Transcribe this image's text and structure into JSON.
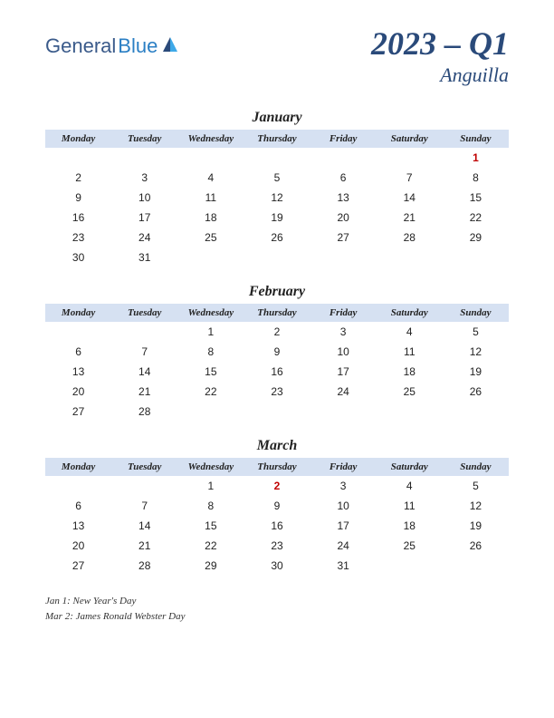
{
  "logo": {
    "general": "General",
    "blue": "Blue"
  },
  "title": "2023 – Q1",
  "region": "Anguilla",
  "colors": {
    "header_bg": "#d6e1f2",
    "title_color": "#2a4a7a",
    "holiday_color": "#c00000",
    "text_color": "#222222",
    "logo_general": "#3a5a8a",
    "logo_blue": "#2b7fc4"
  },
  "day_headers": [
    "Monday",
    "Tuesday",
    "Wednesday",
    "Thursday",
    "Friday",
    "Saturday",
    "Sunday"
  ],
  "months": [
    {
      "name": "January",
      "weeks": [
        [
          "",
          "",
          "",
          "",
          "",
          "",
          "1"
        ],
        [
          "2",
          "3",
          "4",
          "5",
          "6",
          "7",
          "8"
        ],
        [
          "9",
          "10",
          "11",
          "12",
          "13",
          "14",
          "15"
        ],
        [
          "16",
          "17",
          "18",
          "19",
          "20",
          "21",
          "22"
        ],
        [
          "23",
          "24",
          "25",
          "26",
          "27",
          "28",
          "29"
        ],
        [
          "30",
          "31",
          "",
          "",
          "",
          "",
          ""
        ]
      ],
      "holidays": [
        [
          0,
          6
        ]
      ]
    },
    {
      "name": "February",
      "weeks": [
        [
          "",
          "",
          "1",
          "2",
          "3",
          "4",
          "5"
        ],
        [
          "6",
          "7",
          "8",
          "9",
          "10",
          "11",
          "12"
        ],
        [
          "13",
          "14",
          "15",
          "16",
          "17",
          "18",
          "19"
        ],
        [
          "20",
          "21",
          "22",
          "23",
          "24",
          "25",
          "26"
        ],
        [
          "27",
          "28",
          "",
          "",
          "",
          "",
          ""
        ]
      ],
      "holidays": []
    },
    {
      "name": "March",
      "weeks": [
        [
          "",
          "",
          "1",
          "2",
          "3",
          "4",
          "5"
        ],
        [
          "6",
          "7",
          "8",
          "9",
          "10",
          "11",
          "12"
        ],
        [
          "13",
          "14",
          "15",
          "16",
          "17",
          "18",
          "19"
        ],
        [
          "20",
          "21",
          "22",
          "23",
          "24",
          "25",
          "26"
        ],
        [
          "27",
          "28",
          "29",
          "30",
          "31",
          "",
          ""
        ]
      ],
      "holidays": [
        [
          0,
          3
        ]
      ]
    }
  ],
  "holiday_list": [
    "Jan 1: New Year's Day",
    "Mar 2: James Ronald Webster Day"
  ]
}
